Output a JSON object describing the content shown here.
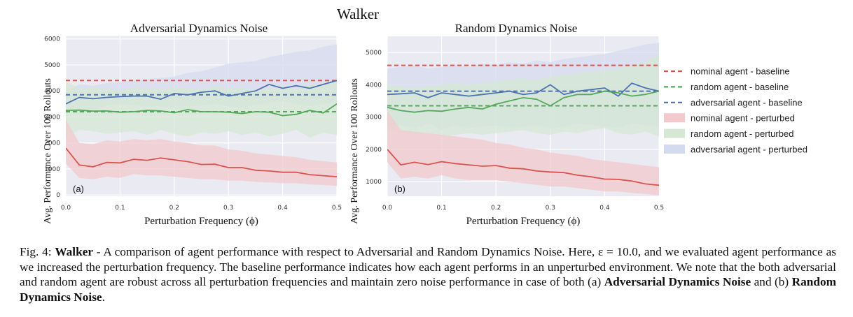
{
  "figure_title": "Walker",
  "legend": [
    {
      "label": "nominal agent - baseline",
      "kind": "dash",
      "color": "#d9534f"
    },
    {
      "label": "random agent - baseline",
      "kind": "dash",
      "color": "#55a85a"
    },
    {
      "label": "adversarial agent - baseline",
      "kind": "dash",
      "color": "#4c72b0"
    },
    {
      "label": "nominal agent - perturbed",
      "kind": "patch",
      "color": "#f2c9cc"
    },
    {
      "label": "random agent - perturbed",
      "kind": "patch",
      "color": "#d5e8d4"
    },
    {
      "label": "adversarial agent - perturbed",
      "kind": "patch",
      "color": "#d5dbee"
    }
  ],
  "colors": {
    "nominal": "#d9534f",
    "random": "#55a85a",
    "adversarial": "#4c72b0",
    "plot_bg": "#eaeaf2"
  },
  "caption": {
    "fig": "Fig. 4:",
    "bold_title": "Walker",
    "text1": " - A comparison of agent performance with respect to Adversarial and Random Dynamics Noise. Here, ε = 10.0, and we evaluated agent performance as we increased the perturbation frequency. The baseline performance indicates how each agent performs in an unperturbed environment. We note that the both adversarial and random agent are robust across all perturbation frequencies and maintain zero noise performance in case of both (a) ",
    "bold_a": "Adversarial Dynamics Noise",
    "text2": " and (b) ",
    "bold_b": "Random Dynamics Noise",
    "text3": "."
  },
  "chart_data": [
    {
      "type": "line",
      "title": "Adversarial Dynamics Noise",
      "panel_label": "(a)",
      "xlabel": "Perturbation Frequency (ϕ)",
      "ylabel": "Avg. Performance Over 100 Rollouts",
      "xlim": [
        0,
        0.5
      ],
      "ylim": [
        -50,
        6100
      ],
      "xticks": [
        0.0,
        0.1,
        0.2,
        0.3,
        0.4,
        0.5
      ],
      "xtick_labels": [
        "0.0",
        "0.1",
        "0.2",
        "0.3",
        "0.4",
        "0.5"
      ],
      "yticks": [
        0,
        1000,
        2000,
        3000,
        4000,
        5000,
        6000
      ],
      "ytick_labels": [
        "0",
        "1000",
        "2000",
        "3000",
        "4000",
        "5000",
        "6000"
      ],
      "grid": true,
      "x": [
        0.0,
        0.025,
        0.05,
        0.075,
        0.1,
        0.125,
        0.15,
        0.175,
        0.2,
        0.225,
        0.25,
        0.275,
        0.3,
        0.325,
        0.35,
        0.375,
        0.4,
        0.425,
        0.45,
        0.475,
        0.5
      ],
      "baselines": {
        "nominal": 4400,
        "random": 3200,
        "adversarial": 3850
      },
      "series": [
        {
          "key": "nominal",
          "values": [
            1800,
            1150,
            1080,
            1250,
            1230,
            1370,
            1330,
            1420,
            1350,
            1280,
            1170,
            1180,
            1050,
            1050,
            950,
            920,
            870,
            870,
            780,
            740,
            700
          ],
          "lower": [
            1200,
            650,
            600,
            700,
            650,
            800,
            750,
            750,
            700,
            650,
            600,
            600,
            550,
            550,
            500,
            480,
            450,
            450,
            400,
            380,
            350
          ],
          "upper": [
            2900,
            2000,
            1950,
            2100,
            2050,
            2150,
            2100,
            2150,
            2050,
            2000,
            1900,
            1900,
            1750,
            1700,
            1600,
            1550,
            1500,
            1450,
            1350,
            1300,
            1250
          ]
        },
        {
          "key": "random",
          "values": [
            3250,
            3260,
            3220,
            3230,
            3180,
            3200,
            3250,
            3230,
            3160,
            3280,
            3200,
            3200,
            3180,
            3130,
            3200,
            3180,
            3050,
            3100,
            3250,
            3150,
            3500
          ],
          "lower": [
            2200,
            2500,
            2450,
            2350,
            2400,
            2450,
            2300,
            2500,
            2350,
            2250,
            2400,
            2350,
            2450,
            2300,
            2400,
            2250,
            2350,
            2500,
            2200,
            2400,
            2300
          ],
          "upper": [
            4350,
            4100,
            4150,
            4100,
            4000,
            4150,
            4100,
            4050,
            4150,
            4100,
            4050,
            4200,
            4100,
            4150,
            4000,
            4100,
            4150,
            4050,
            4250,
            4200,
            4400
          ]
        },
        {
          "key": "adversarial",
          "values": [
            3500,
            3750,
            3700,
            3750,
            3780,
            3800,
            3800,
            3680,
            3900,
            3850,
            3950,
            4000,
            3800,
            3900,
            4000,
            4250,
            4100,
            4200,
            4100,
            4250,
            4400
          ],
          "lower": [
            3300,
            3350,
            3300,
            3450,
            3500,
            3450,
            3400,
            3400,
            3350,
            3350,
            3450,
            3500,
            3400,
            3350,
            3450,
            3550,
            3600,
            3500,
            3400,
            3500,
            3550
          ],
          "upper": [
            4000,
            4250,
            4200,
            4300,
            4350,
            4400,
            4450,
            4500,
            4550,
            4700,
            4750,
            4900,
            5050,
            5100,
            5150,
            5300,
            5400,
            5500,
            5550,
            5700,
            5800
          ]
        }
      ]
    },
    {
      "type": "line",
      "title": "Random Dynamics Noise",
      "panel_label": "(b)",
      "xlabel": "Perturbation Frequency (ϕ)",
      "ylabel": "Avg. Performance Over 100 Rollouts",
      "xlim": [
        0,
        0.5
      ],
      "ylim": [
        550,
        5500
      ],
      "xticks": [
        0.0,
        0.1,
        0.2,
        0.3,
        0.4,
        0.5
      ],
      "xtick_labels": [
        "0.0",
        "0.1",
        "0.2",
        "0.3",
        "0.4",
        "0.5"
      ],
      "yticks": [
        1000,
        2000,
        3000,
        4000,
        5000
      ],
      "ytick_labels": [
        "1000",
        "2000",
        "3000",
        "4000",
        "5000"
      ],
      "grid": true,
      "x": [
        0.0,
        0.025,
        0.05,
        0.075,
        0.1,
        0.125,
        0.15,
        0.175,
        0.2,
        0.225,
        0.25,
        0.275,
        0.3,
        0.325,
        0.35,
        0.375,
        0.4,
        0.425,
        0.45,
        0.475,
        0.5
      ],
      "baselines": {
        "nominal": 4600,
        "random": 3350,
        "adversarial": 3800
      },
      "series": [
        {
          "key": "nominal",
          "values": [
            2000,
            1520,
            1600,
            1530,
            1620,
            1560,
            1520,
            1480,
            1500,
            1420,
            1400,
            1330,
            1300,
            1280,
            1200,
            1150,
            1080,
            1070,
            1020,
            930,
            890
          ],
          "lower": [
            1600,
            1100,
            1150,
            1100,
            1200,
            1100,
            1050,
            1050,
            1050,
            1000,
            950,
            900,
            850,
            850,
            800,
            750,
            700,
            700,
            650,
            620,
            580
          ],
          "upper": [
            3200,
            2600,
            2550,
            2500,
            2450,
            2400,
            2350,
            2300,
            2200,
            2150,
            2050,
            2000,
            1900,
            1850,
            1800,
            1700,
            1650,
            1600,
            1550,
            1500,
            1450
          ]
        },
        {
          "key": "random",
          "values": [
            3300,
            3200,
            3150,
            3200,
            3180,
            3250,
            3300,
            3250,
            3400,
            3500,
            3600,
            3550,
            3350,
            3600,
            3700,
            3700,
            3800,
            3750,
            3650,
            3700,
            3800
          ],
          "lower": [
            2600,
            2500,
            2450,
            2500,
            2400,
            2450,
            2500,
            2450,
            2500,
            2550,
            2600,
            2500,
            2450,
            2550,
            2500,
            2600,
            2650,
            2500,
            2450,
            2550,
            2400
          ],
          "upper": [
            4000,
            3950,
            3900,
            3950,
            4000,
            4050,
            4000,
            4050,
            4100,
            4150,
            4200,
            4150,
            4250,
            4300,
            4350,
            4400,
            4450,
            4500,
            4600,
            4700,
            4950
          ]
        },
        {
          "key": "adversarial",
          "values": [
            3700,
            3720,
            3750,
            3600,
            3750,
            3700,
            3650,
            3700,
            3750,
            3800,
            3700,
            3750,
            4000,
            3700,
            3800,
            3850,
            3900,
            3650,
            4050,
            3900,
            3800
          ],
          "lower": [
            2700,
            2750,
            2650,
            2800,
            2600,
            2750,
            2650,
            2700,
            2750,
            2650,
            2700,
            2750,
            2650,
            2700,
            2800,
            2750,
            2700,
            2650,
            2800,
            2750,
            2700
          ],
          "upper": [
            4500,
            4550,
            4600,
            4500,
            4550,
            4600,
            4550,
            4650,
            4600,
            4700,
            4650,
            4750,
            4700,
            4800,
            4850,
            4900,
            4950,
            5050,
            5150,
            5250,
            5300
          ]
        }
      ]
    }
  ]
}
